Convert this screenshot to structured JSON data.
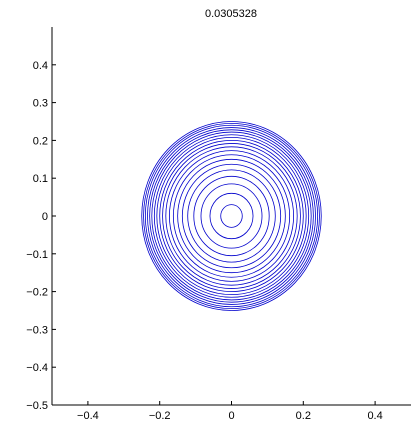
{
  "chart_data": {
    "type": "line",
    "subtype": "contour",
    "title": "0.0305328",
    "xlabel": "",
    "ylabel": "",
    "xlim": [
      -0.5,
      0.5
    ],
    "ylim": [
      -0.5,
      0.5
    ],
    "x_ticks": [
      -0.4,
      -0.2,
      0,
      0.2,
      0.4
    ],
    "x_tick_labels": [
      "−0.4",
      "−0.2",
      "0",
      "0.2",
      "0.4"
    ],
    "y_ticks": [
      -0.5,
      -0.4,
      -0.3,
      -0.2,
      -0.1,
      0,
      0.1,
      0.2,
      0.3,
      0.4
    ],
    "y_tick_labels": [
      "−0.5",
      "−0.4",
      "−0.3",
      "−0.2",
      "−0.1",
      "0",
      "0.1",
      "0.2",
      "0.3",
      "0.4"
    ],
    "grid": false,
    "center": [
      0,
      0
    ],
    "contour_radii": [
      0.03,
      0.06,
      0.085,
      0.105,
      0.122,
      0.137,
      0.15,
      0.162,
      0.173,
      0.183,
      0.192,
      0.2,
      0.208,
      0.215,
      0.222,
      0.228,
      0.234,
      0.24,
      0.245,
      0.25
    ],
    "line_color": "#0000cc"
  }
}
